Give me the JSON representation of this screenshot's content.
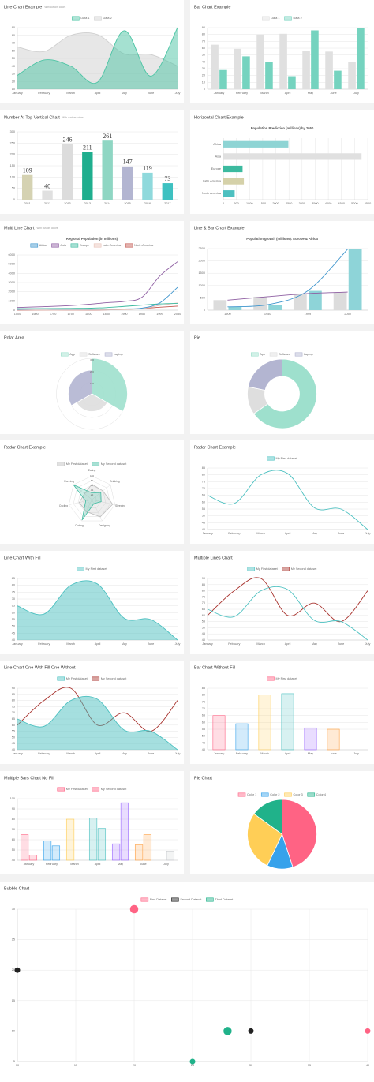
{
  "chart_data": [
    {
      "type": "line",
      "title": "Line Chart Example",
      "subtitle": "With custom colors",
      "categories": [
        "January",
        "February",
        "March",
        "April",
        "May",
        "June",
        "July"
      ],
      "series": [
        {
          "name": "Data 1",
          "color": "#4cc4a4",
          "fill": true,
          "values": [
            28,
            48,
            40,
            19,
            86,
            27,
            90
          ]
        },
        {
          "name": "Data 2",
          "color": "#d0d0d0",
          "fill": true,
          "values": [
            65,
            59,
            80,
            81,
            56,
            55,
            40
          ]
        }
      ],
      "ylim": [
        10,
        90
      ],
      "yticks": [
        10,
        20,
        30,
        40,
        50,
        60,
        70,
        80,
        90
      ]
    },
    {
      "type": "bar",
      "title": "Bar Chart Example",
      "categories": [
        "January",
        "February",
        "March",
        "April",
        "May",
        "June",
        "July"
      ],
      "series": [
        {
          "name": "Data 1",
          "color": "#e0e0e0",
          "values": [
            65,
            59,
            80,
            81,
            56,
            55,
            40
          ]
        },
        {
          "name": "Data 2",
          "color": "#75d3bf",
          "values": [
            28,
            48,
            40,
            19,
            86,
            27,
            90
          ]
        }
      ],
      "ylim": [
        0,
        90
      ],
      "yticks": [
        0,
        10,
        20,
        30,
        40,
        50,
        60,
        70,
        80,
        90
      ]
    },
    {
      "type": "bar",
      "title": "Number At Top Vertical Chart",
      "subtitle": "With custom colors",
      "show_values": true,
      "categories": [
        "2011",
        "2012",
        "2013",
        "2013",
        "2014",
        "2015",
        "2016",
        "2017"
      ],
      "series": [
        {
          "values": [
            109,
            40,
            246,
            211,
            261,
            147,
            119,
            73
          ],
          "colors": [
            "#d5d2b2",
            "#e0e0e0",
            "#dcdcdc",
            "#1fae8e",
            "#8fd6c3",
            "#b3b5d1",
            "#8fd9dc",
            "#3ec1c1"
          ]
        }
      ],
      "ylim": [
        0,
        300
      ],
      "yticks": [
        0,
        50,
        100,
        150,
        200,
        250,
        300
      ]
    },
    {
      "type": "hbar",
      "title": "Horizontal Chart Example",
      "chart_title": "Population Prediction (millions) by 2050",
      "categories": [
        "Africa",
        "Asia",
        "Europe",
        "Latin America",
        "North America"
      ],
      "series": [
        {
          "values": [
            2478,
            5267,
            734,
            784,
            433
          ],
          "colors": [
            "#8ed4d4",
            "#e0e0e0",
            "#3cba9f",
            "#d5d1a9",
            "#4dc0c0"
          ]
        }
      ],
      "xlim": [
        0,
        5500
      ],
      "xticks": [
        0,
        500,
        1000,
        1500,
        2000,
        2500,
        3000,
        3500,
        4000,
        4500,
        5000,
        5500
      ]
    },
    {
      "type": "line",
      "title": "Multi Line Chart",
      "subtitle": "With custom colors",
      "chart_title": "Regional Population (in millions)",
      "categories": [
        "1500",
        "1600",
        "1700",
        "1750",
        "1800",
        "1850",
        "1900",
        "1950",
        "1999",
        "2050"
      ],
      "series": [
        {
          "name": "Africa",
          "color": "#3e95cd",
          "values": [
            86,
            114,
            106,
            106,
            107,
            111,
            133,
            221,
            783,
            2478
          ]
        },
        {
          "name": "Asia",
          "color": "#8e5ea2",
          "values": [
            282,
            350,
            411,
            502,
            635,
            809,
            947,
            1402,
            3700,
            5267
          ]
        },
        {
          "name": "Europe",
          "color": "#3cba9f",
          "values": [
            168,
            170,
            178,
            190,
            203,
            276,
            408,
            547,
            675,
            734
          ]
        },
        {
          "name": "Latin America",
          "color": "#e8c3b9",
          "values": [
            40,
            20,
            10,
            16,
            24,
            38,
            74,
            167,
            508,
            784
          ]
        },
        {
          "name": "North America",
          "color": "#c45850",
          "values": [
            6,
            3,
            2,
            2,
            7,
            26,
            82,
            172,
            312,
            433
          ]
        }
      ],
      "ylim": [
        0,
        6000
      ],
      "yticks": [
        0,
        1000,
        2000,
        3000,
        4000,
        5000,
        6000
      ]
    },
    {
      "type": "combo",
      "title": "Line & Bar Chart Example",
      "chart_title": "Population growth (millions): Europe & Africa",
      "categories": [
        "1900",
        "1950",
        "1999",
        "2050"
      ],
      "series": [
        {
          "kind": "line",
          "color": "#8e5ea2",
          "values": [
            408,
            547,
            675,
            734
          ]
        },
        {
          "kind": "line",
          "color": "#3e95cd",
          "values": [
            133,
            221,
            783,
            2478
          ]
        },
        {
          "kind": "bar",
          "color": "#dcdcdc",
          "values": [
            408,
            547,
            675,
            734
          ]
        },
        {
          "kind": "bar",
          "color": "#8ed4d8",
          "values": [
            133,
            221,
            783,
            2478
          ]
        }
      ],
      "ylim": [
        0,
        2500
      ],
      "yticks": [
        0,
        500,
        1000,
        1500,
        2000,
        2500
      ]
    },
    {
      "type": "polar",
      "title": "Polar Area",
      "categories": [
        "App",
        "Software",
        "Laptop"
      ],
      "values": [
        300,
        150,
        200
      ],
      "colors": [
        "#9ee0cd",
        "#dedede",
        "#b3b5d1"
      ],
      "rlim": [
        0,
        300
      ],
      "rticks": [
        100,
        200,
        300
      ]
    },
    {
      "type": "doughnut",
      "title": "Pie",
      "categories": [
        "App",
        "Software",
        "Laptop"
      ],
      "values": [
        300,
        60,
        100
      ],
      "colors": [
        "#9ee0cd",
        "#dedede",
        "#b3b5d1"
      ]
    },
    {
      "type": "radar",
      "title": "Radar Chart Example",
      "categories": [
        "Eating",
        "Drinking",
        "Sleeping",
        "Designing",
        "Coding",
        "Cycling",
        "Running"
      ],
      "series": [
        {
          "name": "My First dataset",
          "color": "#bdbdbd",
          "values": [
            65,
            59,
            90,
            81,
            56,
            55,
            40
          ]
        },
        {
          "name": "My Second dataset",
          "color": "#3cba9f",
          "values": [
            28,
            48,
            40,
            19,
            96,
            27,
            100
          ]
        }
      ],
      "rlim": [
        0,
        100
      ],
      "rticks": [
        20,
        40,
        60,
        80,
        100
      ]
    },
    {
      "type": "line",
      "title": "Radar Chart Example",
      "categories": [
        "January",
        "February",
        "March",
        "April",
        "May",
        "June",
        "July"
      ],
      "series": [
        {
          "name": "My First dataset",
          "color": "#4bc0c0",
          "values": [
            65,
            59,
            80,
            81,
            56,
            55,
            40
          ]
        }
      ],
      "ylim": [
        40,
        85
      ],
      "yticks": [
        40,
        45,
        50,
        55,
        60,
        65,
        70,
        75,
        80,
        85
      ]
    },
    {
      "type": "line",
      "title": "Line Chart With Fill",
      "categories": [
        "January",
        "February",
        "March",
        "April",
        "May",
        "June",
        "July"
      ],
      "series": [
        {
          "name": "My First dataset",
          "color": "#4bc0c0",
          "fill": true,
          "values": [
            65,
            59,
            80,
            81,
            56,
            55,
            40
          ]
        }
      ],
      "ylim": [
        40,
        85
      ],
      "yticks": [
        40,
        45,
        50,
        55,
        60,
        65,
        70,
        75,
        80,
        85
      ]
    },
    {
      "type": "line",
      "title": "Multiple Lines Chart",
      "categories": [
        "January",
        "February",
        "March",
        "April",
        "May",
        "June",
        "July"
      ],
      "series": [
        {
          "name": "My First dataset",
          "color": "#4bc0c0",
          "values": [
            65,
            59,
            80,
            81,
            56,
            55,
            40
          ]
        },
        {
          "name": "My Second dataset",
          "color": "#a8322d",
          "values": [
            60,
            80,
            90,
            60,
            70,
            55,
            80
          ]
        }
      ],
      "ylim": [
        40,
        90
      ],
      "yticks": [
        40,
        45,
        50,
        55,
        60,
        65,
        70,
        75,
        80,
        85,
        90
      ]
    },
    {
      "type": "line",
      "title": "Line Chart One With Fill One Without",
      "categories": [
        "January",
        "February",
        "March",
        "April",
        "May",
        "June",
        "July"
      ],
      "series": [
        {
          "name": "My First dataset",
          "color": "#4bc0c0",
          "fill": true,
          "values": [
            65,
            59,
            80,
            81,
            56,
            55,
            40
          ]
        },
        {
          "name": "My Second dataset",
          "color": "#a8322d",
          "values": [
            60,
            80,
            90,
            60,
            70,
            55,
            80
          ]
        }
      ],
      "ylim": [
        40,
        90
      ],
      "yticks": [
        40,
        45,
        50,
        55,
        60,
        65,
        70,
        75,
        80,
        85,
        90
      ]
    },
    {
      "type": "bar",
      "title": "Bar Chart Without Fill",
      "outline": true,
      "categories": [
        "January",
        "February",
        "March",
        "April",
        "May",
        "June",
        "July"
      ],
      "series": [
        {
          "name": "My First dataset",
          "values": [
            65,
            59,
            80,
            81,
            56,
            55,
            40
          ],
          "colors": [
            "#ff6384",
            "#36a2eb",
            "#ffce56",
            "#4bc0c0",
            "#9966ff",
            "#ff9f40",
            "#c9cbcf"
          ]
        }
      ],
      "ylim": [
        40,
        85
      ],
      "yticks": [
        40,
        45,
        50,
        55,
        60,
        65,
        70,
        75,
        80,
        85
      ]
    },
    {
      "type": "bar",
      "title": "Multiple Bars Chart No Fill",
      "outline": true,
      "categories": [
        "January",
        "February",
        "March",
        "April",
        "May",
        "June",
        "July"
      ],
      "series": [
        {
          "name": "My First dataset",
          "values": [
            65,
            59,
            80,
            81,
            56,
            55,
            40
          ],
          "colors": [
            "#ff6384",
            "#36a2eb",
            "#ffce56",
            "#4bc0c0",
            "#9966ff",
            "#ff9f40",
            "#c9cbcf"
          ]
        },
        {
          "name": "My Second dataset",
          "values": [
            45,
            54,
            40,
            71,
            96,
            65,
            49
          ],
          "colors": [
            "#ff6384",
            "#36a2eb",
            "#ffce56",
            "#4bc0c0",
            "#9966ff",
            "#ff9f40",
            "#c9cbcf"
          ]
        }
      ],
      "ylim": [
        40,
        100
      ],
      "yticks": [
        40,
        50,
        60,
        70,
        80,
        90,
        100
      ]
    },
    {
      "type": "pie",
      "title": "Pie Chart",
      "categories": [
        "Color 1",
        "Color 2",
        "Color 3",
        "Color 4"
      ],
      "values": [
        45,
        12,
        28,
        15
      ],
      "colors": [
        "#ff6384",
        "#36a2eb",
        "#ffce56",
        "#20b28a"
      ]
    },
    {
      "type": "bubble",
      "title": "Bubble Chart",
      "series": [
        {
          "name": "First Dataset",
          "color": "#ff6384",
          "x": [
            20,
            40
          ],
          "y": [
            30,
            10
          ],
          "r": [
            15,
            10
          ]
        },
        {
          "name": "Second Dataset",
          "color": "#222222",
          "x": [
            10,
            30
          ],
          "y": [
            20,
            10
          ],
          "r": [
            10,
            10
          ]
        },
        {
          "name": "Third Dataset",
          "color": "#20b28a",
          "x": [
            28,
            25
          ],
          "y": [
            10,
            5
          ],
          "r": [
            15,
            10
          ]
        }
      ],
      "xlim": [
        10,
        40
      ],
      "xticks": [
        10,
        15,
        20,
        25,
        30,
        35,
        40
      ],
      "ylim": [
        5,
        30
      ],
      "yticks": [
        5,
        10,
        15,
        20,
        25,
        30
      ]
    }
  ]
}
